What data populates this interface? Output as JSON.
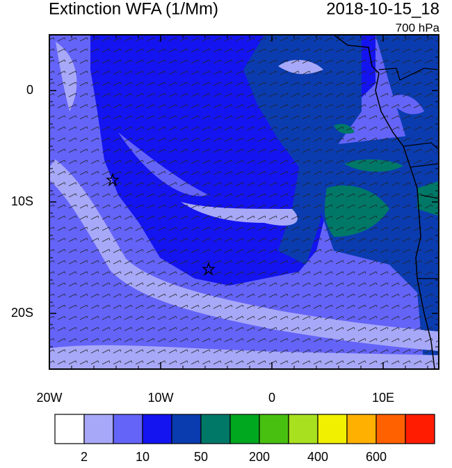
{
  "header": {
    "title": "Extinction WFA (1/Mm)",
    "time": "2018-10-15_18",
    "level": "700 hPa"
  },
  "map": {
    "lon_range": [
      -20,
      15
    ],
    "lat_range": [
      -25,
      5
    ],
    "lon_ticks": [
      {
        "value": -20,
        "label": "20W"
      },
      {
        "value": -10,
        "label": "10W"
      },
      0,
      {
        "value": 10,
        "label": "10E"
      }
    ],
    "lat_ticks": [
      0,
      {
        "value": -10,
        "label": "10S"
      },
      {
        "value": -20,
        "label": "20S"
      }
    ]
  },
  "colorbar": {
    "colors": [
      "#ffffff",
      "#a8a8f8",
      "#6464f8",
      "#1414f0",
      "#0a3cb0",
      "#007868",
      "#00a820",
      "#48c010",
      "#a8e020",
      "#f0f000",
      "#ffb000",
      "#ff6000",
      "#ff1c00"
    ],
    "labels": [
      "2",
      "10",
      "50",
      "200",
      "400",
      "600"
    ]
  }
}
